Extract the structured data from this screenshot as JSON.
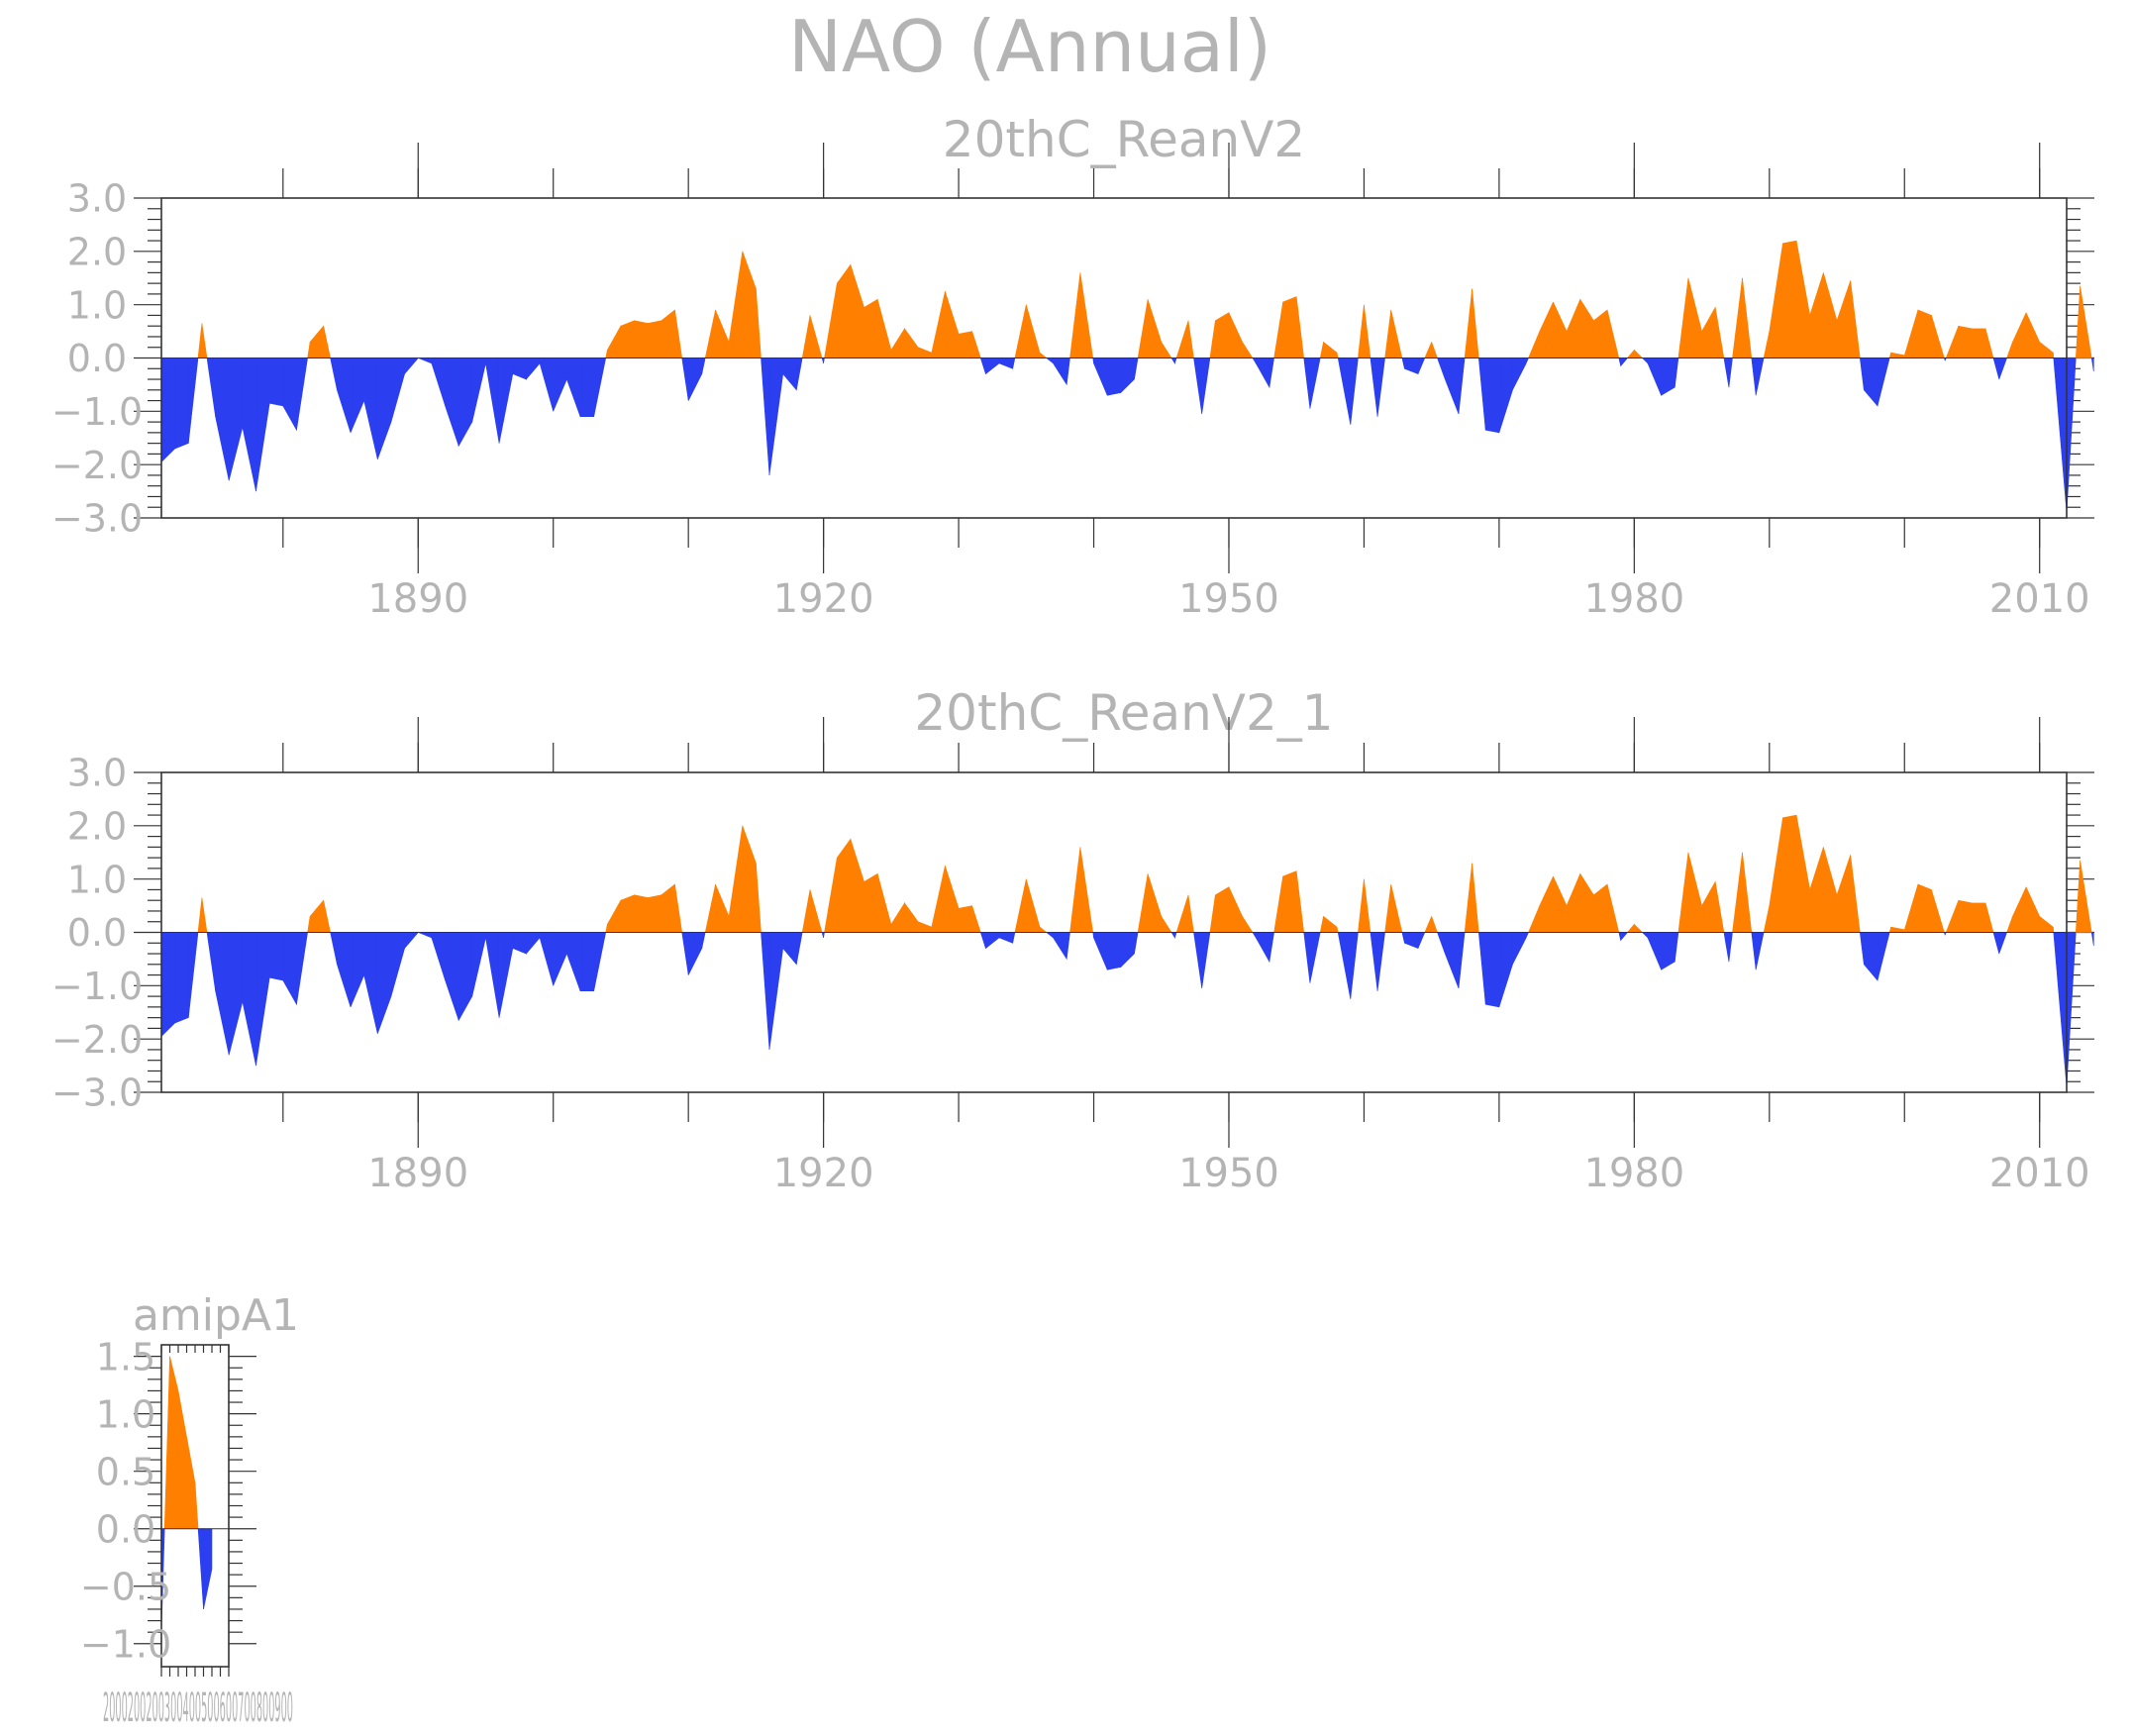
{
  "figure_title": "NAO (Annual)",
  "colors": {
    "positive": "#ff8000",
    "negative": "#2b3ff0",
    "text": "#b4b4b4",
    "frame": "#333333"
  },
  "chart_data": [
    {
      "type": "area",
      "title": "20thC_ReanV2",
      "xlabel": "",
      "ylabel": "",
      "xlim": [
        1871,
        2012
      ],
      "ylim": [
        -3.0,
        3.0
      ],
      "xticks": [
        1890,
        1920,
        1950,
        1980,
        2010
      ],
      "xtick_labels": [
        "1890",
        "1920",
        "1950",
        "1980",
        "2010"
      ],
      "yticks": [
        -3.0,
        -2.0,
        -1.0,
        0.0,
        1.0,
        2.0,
        3.0
      ],
      "ytick_labels": [
        "-3.0",
        "-2.0",
        "-1.0",
        "0.0",
        "1.0",
        "2.0",
        "3.0"
      ],
      "series": [
        {
          "x_start": 1871,
          "x_step": 1,
          "values": [
            -1.95,
            -1.7,
            -1.6,
            0.65,
            -1.1,
            -2.3,
            -1.3,
            -2.5,
            -0.85,
            -0.9,
            -1.35,
            0.3,
            0.6,
            -0.6,
            -1.4,
            -0.8,
            -1.9,
            -1.2,
            -0.3,
            0.0,
            -0.1,
            -0.9,
            -1.65,
            -1.2,
            -0.1,
            -1.6,
            -0.3,
            -0.4,
            -0.1,
            -1.0,
            -0.4,
            -1.1,
            -1.1,
            0.15,
            0.6,
            0.7,
            0.65,
            0.7,
            0.9,
            -0.8,
            -0.3,
            0.9,
            0.3,
            2.0,
            1.3,
            -2.2,
            -0.3,
            -0.6,
            0.8,
            -0.1,
            1.4,
            1.75,
            0.95,
            1.1,
            0.15,
            0.55,
            0.2,
            0.1,
            1.25,
            0.45,
            0.5,
            -0.3,
            -0.1,
            -0.2,
            1.0,
            0.1,
            -0.1,
            -0.5,
            1.6,
            -0.1,
            -0.7,
            -0.65,
            -0.4,
            1.1,
            0.3,
            -0.1,
            0.7,
            -1.05,
            0.7,
            0.85,
            0.3,
            -0.1,
            -0.55,
            1.05,
            1.15,
            -0.95,
            0.3,
            0.1,
            -1.25,
            1.0,
            -1.1,
            0.9,
            -0.2,
            -0.3,
            0.3,
            -0.4,
            -1.05,
            1.3,
            -1.35,
            -1.4,
            -0.6,
            -0.1,
            0.5,
            1.05,
            0.5,
            1.1,
            0.7,
            0.9,
            -0.15,
            0.15,
            -0.1,
            -0.7,
            -0.55,
            1.5,
            0.5,
            0.95,
            -0.55,
            1.5,
            -0.7,
            0.5,
            2.15,
            2.2,
            0.8,
            1.6,
            0.7,
            1.45,
            -0.6,
            -0.9,
            0.1,
            0.05,
            0.9,
            0.8,
            -0.05,
            0.6,
            0.55,
            0.55,
            -0.4,
            0.3,
            0.85,
            0.3,
            0.1,
            -2.9,
            1.35,
            -0.25
          ]
        }
      ]
    },
    {
      "type": "area",
      "title": "20thC_ReanV2_1",
      "xlabel": "",
      "ylabel": "",
      "xlim": [
        1871,
        2012
      ],
      "ylim": [
        -3.0,
        3.0
      ],
      "xticks": [
        1890,
        1920,
        1950,
        1980,
        2010
      ],
      "xtick_labels": [
        "1890",
        "1920",
        "1950",
        "1980",
        "2010"
      ],
      "yticks": [
        -3.0,
        -2.0,
        -1.0,
        0.0,
        1.0,
        2.0,
        3.0
      ],
      "ytick_labels": [
        "-3.0",
        "-2.0",
        "-1.0",
        "0.0",
        "1.0",
        "2.0",
        "3.0"
      ],
      "series": [
        {
          "x_start": 1871,
          "x_step": 1,
          "values": [
            -1.95,
            -1.7,
            -1.6,
            0.65,
            -1.1,
            -2.3,
            -1.3,
            -2.5,
            -0.85,
            -0.9,
            -1.35,
            0.3,
            0.6,
            -0.6,
            -1.4,
            -0.8,
            -1.9,
            -1.2,
            -0.3,
            0.0,
            -0.1,
            -0.9,
            -1.65,
            -1.2,
            -0.1,
            -1.6,
            -0.3,
            -0.4,
            -0.1,
            -1.0,
            -0.4,
            -1.1,
            -1.1,
            0.15,
            0.6,
            0.7,
            0.65,
            0.7,
            0.9,
            -0.8,
            -0.3,
            0.9,
            0.3,
            2.0,
            1.3,
            -2.2,
            -0.3,
            -0.6,
            0.8,
            -0.1,
            1.4,
            1.75,
            0.95,
            1.1,
            0.15,
            0.55,
            0.2,
            0.1,
            1.25,
            0.45,
            0.5,
            -0.3,
            -0.1,
            -0.2,
            1.0,
            0.1,
            -0.1,
            -0.5,
            1.6,
            -0.1,
            -0.7,
            -0.65,
            -0.4,
            1.1,
            0.3,
            -0.1,
            0.7,
            -1.05,
            0.7,
            0.85,
            0.3,
            -0.1,
            -0.55,
            1.05,
            1.15,
            -0.95,
            0.3,
            0.1,
            -1.25,
            1.0,
            -1.1,
            0.9,
            -0.2,
            -0.3,
            0.3,
            -0.4,
            -1.05,
            1.3,
            -1.35,
            -1.4,
            -0.6,
            -0.1,
            0.5,
            1.05,
            0.5,
            1.1,
            0.7,
            0.9,
            -0.15,
            0.15,
            -0.1,
            -0.7,
            -0.55,
            1.5,
            0.5,
            0.95,
            -0.55,
            1.5,
            -0.7,
            0.5,
            2.15,
            2.2,
            0.8,
            1.6,
            0.7,
            1.45,
            -0.6,
            -0.9,
            0.1,
            0.05,
            0.9,
            0.8,
            -0.05,
            0.6,
            0.55,
            0.55,
            -0.4,
            0.3,
            0.85,
            0.3,
            0.1,
            -2.9,
            1.35,
            -0.25
          ]
        }
      ]
    },
    {
      "type": "area",
      "title": "amipA1",
      "xlabel": "",
      "ylabel": "",
      "xlim": [
        2000,
        2008
      ],
      "ylim": [
        -1.2,
        1.6
      ],
      "xtick_labels_overlapped": "2000200200300400500600700800900",
      "yticks": [
        -1.0,
        -0.5,
        0.0,
        0.5,
        1.0,
        1.5
      ],
      "ytick_labels": [
        "-1.0",
        "-0.5",
        "0.0",
        "0.5",
        "1.0",
        "1.5"
      ],
      "series": [
        {
          "x": [
            2000,
            2001,
            2002,
            2003,
            2004,
            2005,
            2006
          ],
          "values": [
            -0.9,
            1.5,
            1.2,
            0.8,
            0.4,
            -0.7,
            -0.35
          ]
        }
      ]
    }
  ]
}
